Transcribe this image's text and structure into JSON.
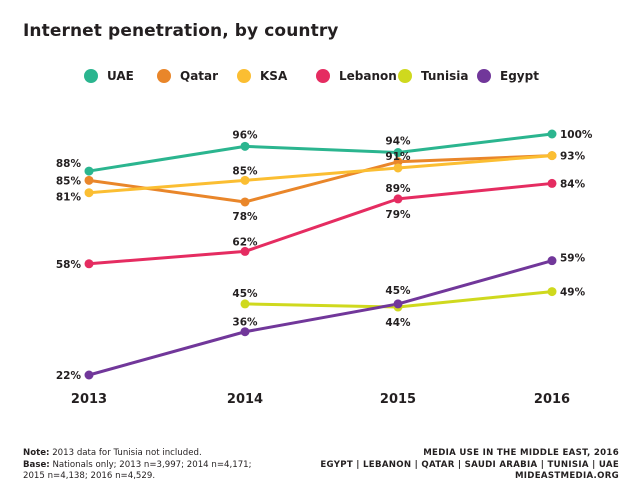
{
  "title": "Internet penetration, by country",
  "footer": {
    "note_label": "Note:",
    "note_text": "2013 data for Tunisia not included.",
    "base_label": "Base:",
    "base_text_1": "Nationals only; 2013 n=3,997; 2014 n=4,171;",
    "base_text_2": "2015 n=4,138; 2016 n=4,529.",
    "source_line_1": "MEDIA USE IN THE MIDDLE EAST, 2016",
    "source_line_2": "EGYPT | LEBANON | QATAR | SAUDI ARABIA | TUNISIA | UAE",
    "source_line_3": "MIDEASTMEDIA.ORG"
  },
  "chart_data": {
    "type": "line",
    "title": "Internet penetration, by country",
    "x": [
      "2013",
      "2014",
      "2015",
      "2016"
    ],
    "ylim": [
      0,
      100
    ],
    "grid": false,
    "legend_position": "top",
    "series": [
      {
        "name": "UAE",
        "color": "#2bb58f",
        "values": [
          88,
          96,
          94,
          100
        ],
        "labels": [
          "88%",
          "96%",
          "94%",
          "100%"
        ]
      },
      {
        "name": "Qatar",
        "color": "#e9862a",
        "values": [
          85,
          78,
          91,
          93
        ],
        "labels": [
          "85%",
          "78%",
          "91%",
          ""
        ]
      },
      {
        "name": "KSA",
        "color": "#fbbe32",
        "values": [
          81,
          85,
          89,
          93
        ],
        "labels": [
          "81%",
          "85%",
          "89%",
          "93%"
        ]
      },
      {
        "name": "Lebanon",
        "color": "#e52c61",
        "values": [
          58,
          62,
          79,
          84
        ],
        "labels": [
          "58%",
          "62%",
          "79%",
          "84%"
        ]
      },
      {
        "name": "Tunisia",
        "color": "#cfd91e",
        "values": [
          null,
          45,
          44,
          49
        ],
        "labels": [
          "",
          "45%",
          "44%",
          "49%"
        ]
      },
      {
        "name": "Egypt",
        "color": "#71379a",
        "values": [
          22,
          36,
          45,
          59
        ],
        "labels": [
          "22%",
          "36%",
          "45%",
          "59%"
        ]
      }
    ]
  }
}
